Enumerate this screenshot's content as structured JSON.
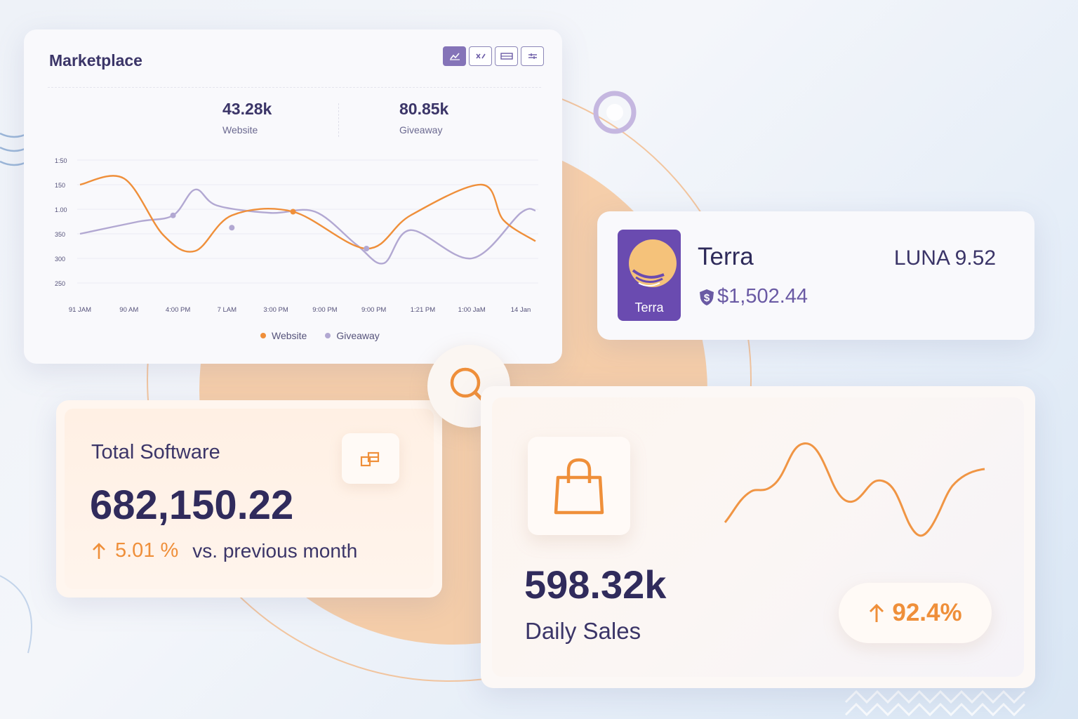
{
  "marketplace": {
    "title": "Marketplace",
    "toolbar": [
      "chart-view-icon",
      "compare-icon",
      "table-icon",
      "filter-icon"
    ],
    "stats": [
      {
        "value": "43.28k",
        "label": "Website"
      },
      {
        "value": "80.85k",
        "label": "Giveaway"
      }
    ],
    "y_ticks": [
      "1:50",
      "150",
      "1.00",
      "350",
      "300",
      "250"
    ],
    "x_ticks": [
      "91 JAM",
      "90 AM",
      "4:00 PM",
      "7 LAM",
      "3:00 PM",
      "9:00 PM",
      "9:00 PM",
      "1:21 PM",
      "1:00 JaM",
      "14 Jan"
    ],
    "legend": [
      {
        "label": "Website",
        "color": "#ef8f3a"
      },
      {
        "label": "Giveaway",
        "color": "#b2a8d2"
      }
    ]
  },
  "chart_data": {
    "type": "line",
    "categories": [
      "91 JAM",
      "90 AM",
      "4:00 PM",
      "7 LAM",
      "3:00 PM",
      "9:00 PM",
      "9:00 PM",
      "1:21 PM",
      "1:00 JaM",
      "14 Jan"
    ],
    "series": [
      {
        "name": "Website",
        "color": "#ef8f3a",
        "points": [
          [
            0,
            0.2
          ],
          [
            0.9,
            0.15
          ],
          [
            1.7,
            0.61
          ],
          [
            2.35,
            0.74
          ],
          [
            3.1,
            0.45
          ],
          [
            4.35,
            0.42
          ],
          [
            5.85,
            0.72
          ],
          [
            6.75,
            0.45
          ],
          [
            8.2,
            0.2
          ],
          [
            8.65,
            0.49
          ],
          [
            9.3,
            0.66
          ]
        ]
      },
      {
        "name": "Giveaway",
        "color": "#b2a8d2",
        "points": [
          [
            0,
            0.6
          ],
          [
            1.2,
            0.5
          ],
          [
            1.9,
            0.45
          ],
          [
            2.35,
            0.24
          ],
          [
            2.8,
            0.37
          ],
          [
            3.9,
            0.43
          ],
          [
            4.8,
            0.42
          ],
          [
            5.65,
            0.69
          ],
          [
            6.2,
            0.84
          ],
          [
            6.75,
            0.57
          ],
          [
            8,
            0.8
          ],
          [
            9.0,
            0.43
          ],
          [
            9.3,
            0.41
          ]
        ]
      }
    ],
    "markers": [
      {
        "series": "Website",
        "point": [
          4.35,
          0.42
        ]
      },
      {
        "series": "Giveaway",
        "point": [
          1.9,
          0.45
        ]
      },
      {
        "series": "Giveaway",
        "point": [
          3.1,
          0.55
        ]
      },
      {
        "series": "Giveaway",
        "point": [
          5.85,
          0.72
        ]
      }
    ],
    "grid": true,
    "legend_position": "bottom-center"
  },
  "terra": {
    "name": "Terra",
    "logo_text": "Terra",
    "ticker": "LUNA 9.52",
    "price": "$1,502.44",
    "logo_color": "#6a4bb0"
  },
  "software": {
    "title": "Total Software",
    "value": "682,150.22",
    "change": "5.01 %",
    "compare": "vs. previous month",
    "icon": "box-stack-icon"
  },
  "daily": {
    "value": "598.32k",
    "label": "Daily Sales",
    "change": "92.4%",
    "icon": "shopping-bag-icon"
  },
  "colors": {
    "accent": "#ef8f3a",
    "primary": "#302b5c",
    "secondary": "#8574b8"
  }
}
